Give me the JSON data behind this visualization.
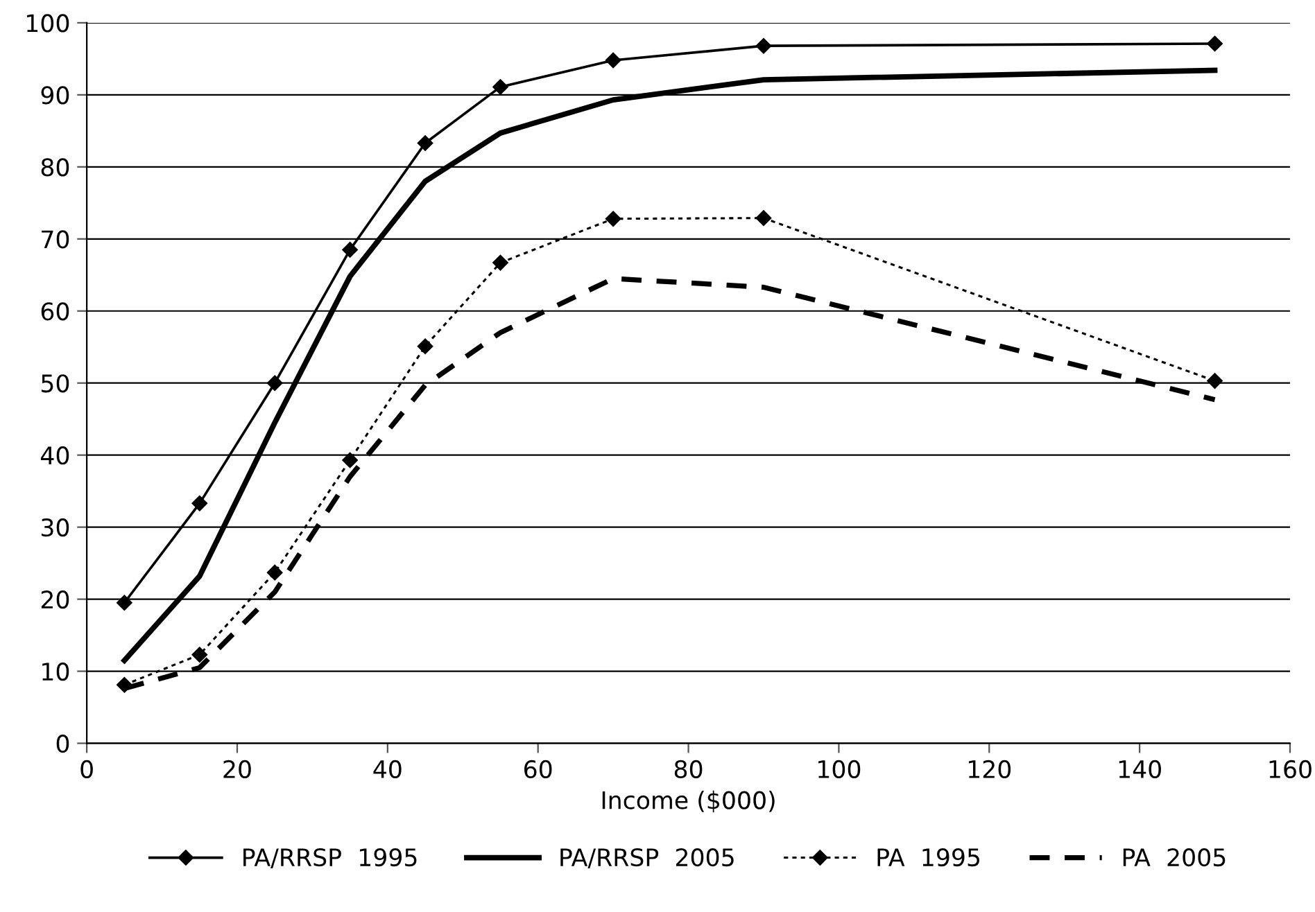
{
  "chart_data": {
    "type": "line",
    "xlabel": "Income ($000)",
    "x": [
      5,
      15,
      25,
      35,
      45,
      55,
      70,
      90,
      150
    ],
    "series": [
      {
        "name": "PA/RRSP  1995",
        "color": "#000000",
        "marker": "diamond",
        "line_style": "solid",
        "values": [
          19.5,
          33.3,
          50,
          68.5,
          83.3,
          91.1,
          94.8,
          96.8,
          97.1
        ]
      },
      {
        "name": "PA/RRSP  2005",
        "color": "#000000",
        "marker": "none",
        "line_style": "solid",
        "values": [
          11.5,
          23.2,
          44.5,
          64.8,
          78,
          84.7,
          89.3,
          92.1,
          93.4
        ]
      },
      {
        "name": "PA  1995",
        "color": "#000000",
        "marker": "diamond",
        "line_style": "dotted",
        "values": [
          8.1,
          12.3,
          23.7,
          39.3,
          55.1,
          66.7,
          72.8,
          72.9,
          50.3
        ]
      },
      {
        "name": "PA  2005",
        "color": "#000000",
        "marker": "none",
        "line_style": "dashed",
        "values": [
          7.6,
          10.5,
          21,
          37,
          49.7,
          57,
          64.5,
          63.3,
          47.7
        ]
      }
    ],
    "xlim": [
      0,
      160
    ],
    "xticks": [
      0,
      20,
      40,
      60,
      80,
      100,
      120,
      140,
      160
    ],
    "ylim": [
      0,
      100
    ],
    "yticks": [
      0,
      10,
      20,
      30,
      40,
      50,
      60,
      70,
      80,
      90,
      100
    ],
    "grid": "y",
    "legend": "bottom"
  }
}
